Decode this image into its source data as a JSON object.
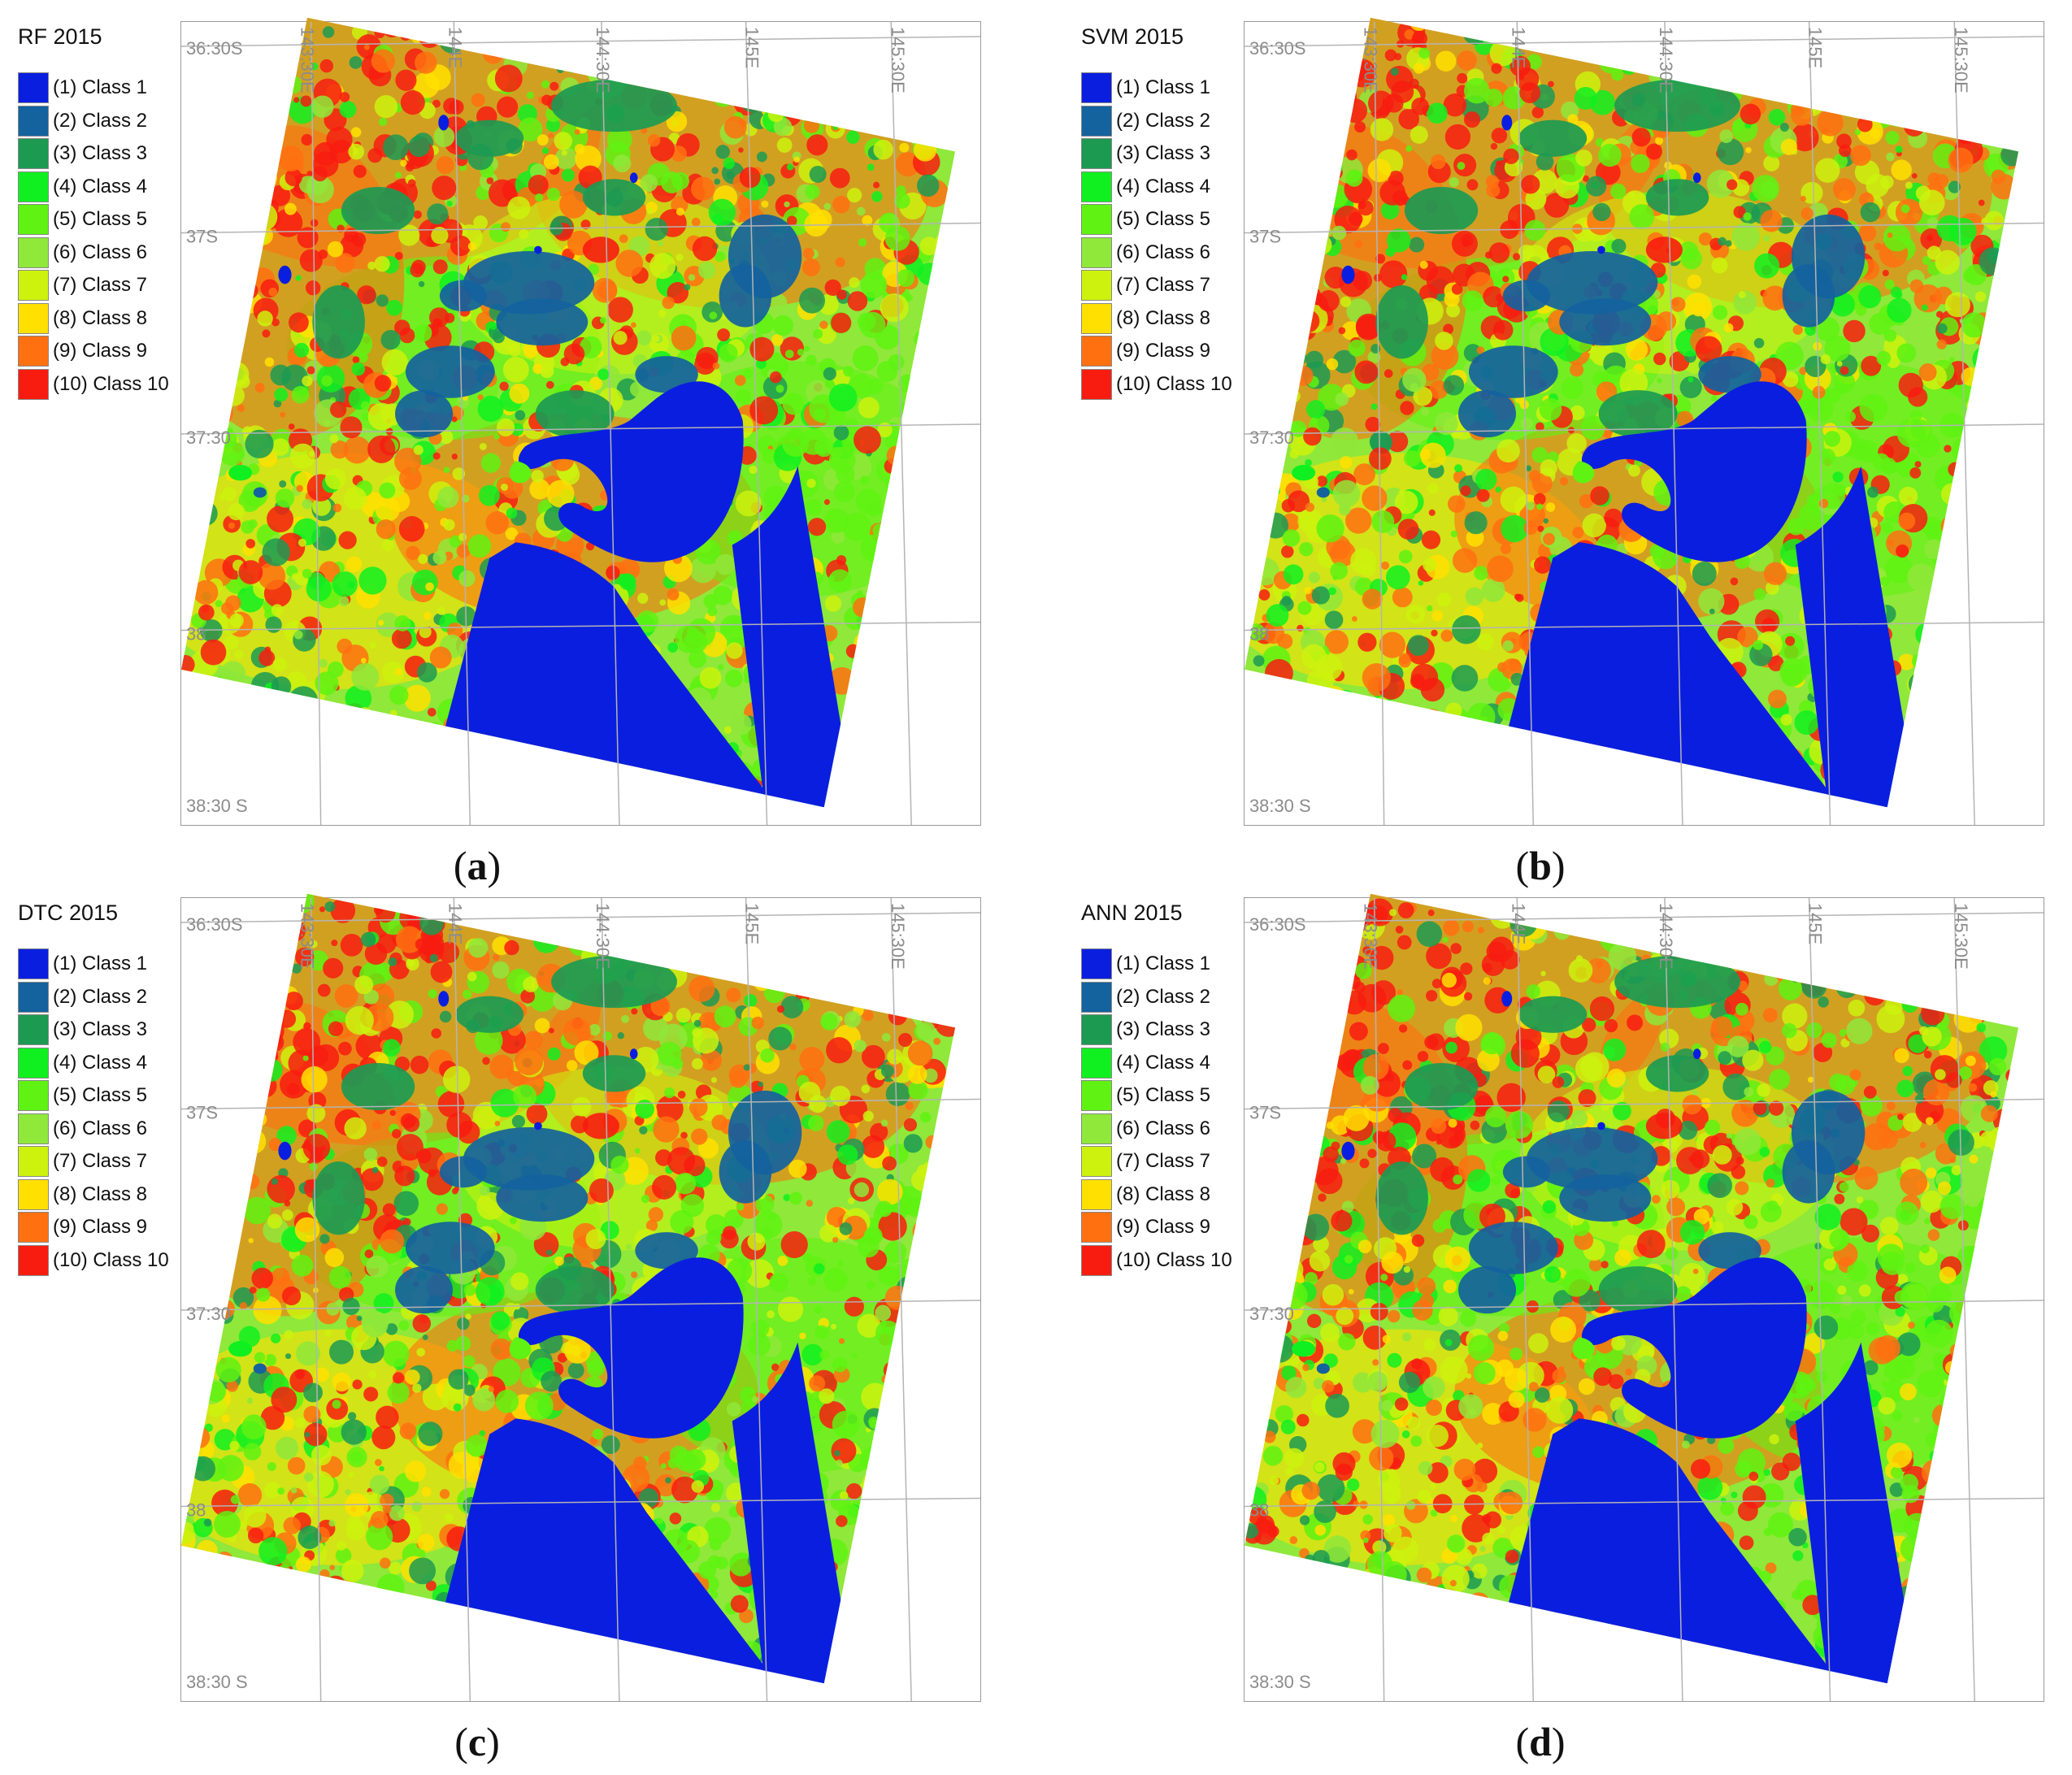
{
  "legend_items": [
    {
      "label": "(1) Class 1",
      "color": "#0a1ee0"
    },
    {
      "label": "(2) Class 2",
      "color": "#14629e"
    },
    {
      "label": "(3) Class 3",
      "color": "#1c9a52"
    },
    {
      "label": "(4) Class 4",
      "color": "#10f020"
    },
    {
      "label": "(5) Class 5",
      "color": "#5ff212"
    },
    {
      "label": "(6) Class 6",
      "color": "#8fe83a"
    },
    {
      "label": "(7) Class 7",
      "color": "#ccf20e"
    },
    {
      "label": "(8) Class 8",
      "color": "#ffe000"
    },
    {
      "label": "(9) Class 9",
      "color": "#ff7010"
    },
    {
      "label": "(10) Class 10",
      "color": "#f81c10"
    }
  ],
  "grid_labels": {
    "lat_top": "36:30S",
    "lat_37": "37S",
    "lat_3730": "37:30",
    "lat_38": "38",
    "lat_bottom": "38:30 S",
    "lon_14330": "143:30E",
    "lon_144": "144E",
    "lon_14430": "144:30E",
    "lon_145": "145E",
    "lon_14530": "145:30E"
  },
  "panels": [
    {
      "title": "RF 2015",
      "caption_open": "(",
      "caption_letter": "a",
      "caption_close": ")"
    },
    {
      "title": "SVM 2015",
      "caption_open": "(",
      "caption_letter": "b",
      "caption_close": ")"
    },
    {
      "title": "DTC 2015",
      "caption_open": "(",
      "caption_letter": "c",
      "caption_close": ")"
    },
    {
      "title": "ANN 2015",
      "caption_open": "(",
      "caption_letter": "d",
      "caption_close": ")"
    }
  ]
}
